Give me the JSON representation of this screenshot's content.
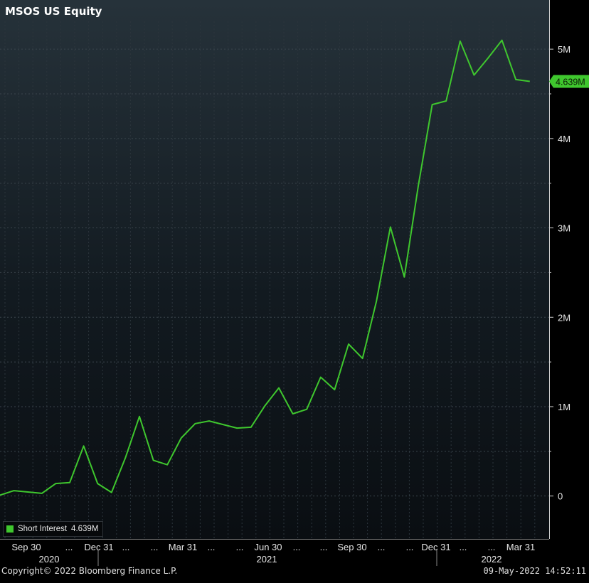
{
  "chart_data": {
    "type": "line",
    "title": "MSOS US Equity",
    "ylim": [
      -480000,
      5550000
    ],
    "y_ticks": [
      0,
      1000000,
      2000000,
      3000000,
      4000000,
      5000000
    ],
    "y_tick_labels": [
      "0",
      "1M",
      "2M",
      "3M",
      "4M",
      "5M"
    ],
    "x_tick_labels": [
      "Sep 30",
      "...",
      "Dec 31",
      "...",
      "...",
      "Mar 31",
      "...",
      "...",
      "Jun 30",
      "...",
      "...",
      "Sep 30",
      "...",
      "...",
      "Dec 31",
      "...",
      "...",
      "Mar 31"
    ],
    "year_labels": [
      "2020",
      "2021",
      "2022"
    ],
    "grid": true,
    "legend_position": "bottom-left",
    "last_value_label": "4.639M",
    "series": [
      {
        "name": "Short Interest",
        "last_value": "4.639M",
        "color": "#3fc72e",
        "values": [
          10000,
          60000,
          45000,
          30000,
          140000,
          150000,
          560000,
          140000,
          40000,
          430000,
          890000,
          400000,
          350000,
          650000,
          810000,
          840000,
          800000,
          760000,
          770000,
          1010000,
          1210000,
          920000,
          970000,
          1330000,
          1190000,
          1700000,
          1540000,
          2180000,
          3010000,
          2450000,
          3470000,
          4380000,
          4420000,
          5090000,
          4710000,
          4900000,
          5100000,
          4660000,
          4639000
        ]
      }
    ]
  },
  "footer": {
    "copyright": "Copyright© 2022 Bloomberg Finance L.P.",
    "timestamp": "09-May-2022 14:52:11"
  }
}
